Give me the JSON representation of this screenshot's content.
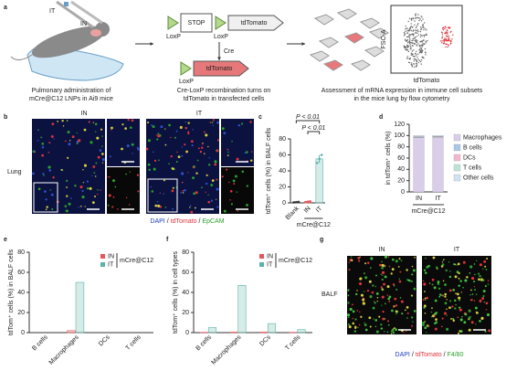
{
  "panel_a": {
    "label": "a",
    "syringe_labels": [
      "IT",
      "IN"
    ],
    "caption_left": [
      "Pulmonary administration of",
      "mCre@C12 LNPs in Ai9 mice"
    ],
    "loxp": "LoxP",
    "stop": "STOP",
    "reporter": "tdTomato",
    "cre": "Cre",
    "caption_mid": [
      "Cre-LoxP recombination turns on",
      "tdTomato in transfected cells"
    ],
    "flow_y": "FSC-A",
    "flow_x": "tdTomato",
    "caption_right": [
      "Assessment of mRNA expression in immune cell subsets",
      "in the mice lung by flow cytometry"
    ]
  },
  "panel_b": {
    "label": "b",
    "row_label": "Lung",
    "columns": [
      "IN",
      "IT"
    ],
    "stain_legend": [
      {
        "text": "DAPI",
        "color": "#1f3fbf"
      },
      {
        "text": "tdTomato",
        "color": "#e0343a"
      },
      {
        "text": "EpCAM",
        "color": "#2aa02a"
      }
    ],
    "separator": "/"
  },
  "panel_c": {
    "label": "c",
    "type": "bar",
    "ylabel": "tdTom⁺ cells (%) in BALF cells",
    "categories": [
      "Blank",
      "IN",
      "IT"
    ],
    "values": [
      1,
      1.5,
      55
    ],
    "errors": [
      0.3,
      0.8,
      5
    ],
    "points": [
      [
        0.6,
        1,
        1.3
      ],
      [
        1,
        1.5,
        2
      ],
      [
        50,
        55,
        60
      ]
    ],
    "colors": [
      "#333333",
      "#e8545a",
      "#5ab3a8"
    ],
    "ylim": [
      0,
      80
    ],
    "yticks": [
      0,
      20,
      40,
      60,
      80
    ],
    "group_label": "mCre@C12",
    "annotations": [
      "P < 0.01",
      "P < 0.01"
    ]
  },
  "panel_d": {
    "label": "d",
    "type": "stacked_bar",
    "ylabel": "in tdTom⁺ cells (%)",
    "categories": [
      "IN",
      "IT"
    ],
    "series": [
      {
        "name": "Macrophages",
        "color": "#d9cdea",
        "values": [
          96,
          97
        ]
      },
      {
        "name": "B cells",
        "color": "#a9c8e8",
        "values": [
          1,
          0.5
        ]
      },
      {
        "name": "DCs",
        "color": "#f4b6cf",
        "values": [
          0.5,
          0.5
        ]
      },
      {
        "name": "T cells",
        "color": "#bfe3d6",
        "values": [
          0.5,
          0.5
        ]
      },
      {
        "name": "Other cells",
        "color": "#cfe3f2",
        "values": [
          2,
          1.5
        ]
      }
    ],
    "ylim": [
      0,
      120
    ],
    "yticks": [
      0,
      20,
      40,
      60,
      80,
      100,
      120
    ],
    "group_label": "mCre@C12"
  },
  "panel_e": {
    "label": "e",
    "type": "grouped_bar",
    "ylabel": "tdTom⁺ cells (%) in BALF cells",
    "categories": [
      "B cells",
      "Macrophages",
      "DCs",
      "T cells"
    ],
    "series": [
      {
        "name": "IN",
        "color": "#e8545a",
        "values": [
          0,
          2,
          0,
          0
        ]
      },
      {
        "name": "IT",
        "color": "#5ab3a8",
        "values": [
          0,
          50,
          0,
          0
        ]
      }
    ],
    "ylim": [
      0,
      80
    ],
    "yticks": [
      0,
      20,
      40,
      60,
      80
    ],
    "group_label": "mCre@C12"
  },
  "panel_f": {
    "label": "f",
    "type": "grouped_bar",
    "ylabel": "tdTom⁺ cells (%) in cell types",
    "categories": [
      "B cells",
      "Macrophages",
      "DCs",
      "T cells"
    ],
    "series": [
      {
        "name": "IN",
        "color": "#e8545a",
        "values": [
          0.3,
          0.5,
          0.5,
          0.3
        ]
      },
      {
        "name": "IT",
        "color": "#5ab3a8",
        "values": [
          5,
          47,
          9,
          3
        ]
      }
    ],
    "ylim": [
      0,
      80
    ],
    "yticks": [
      0,
      20,
      40,
      60,
      80
    ],
    "group_label": "mCre@C12"
  },
  "panel_g": {
    "label": "g",
    "row_label": "BALF",
    "columns": [
      "IN",
      "IT"
    ],
    "stain_legend": [
      {
        "text": "DAPI",
        "color": "#1f3fbf"
      },
      {
        "text": "tdTomato",
        "color": "#e0343a"
      },
      {
        "text": "F4/80",
        "color": "#2aa02a"
      }
    ],
    "separator": "/"
  }
}
